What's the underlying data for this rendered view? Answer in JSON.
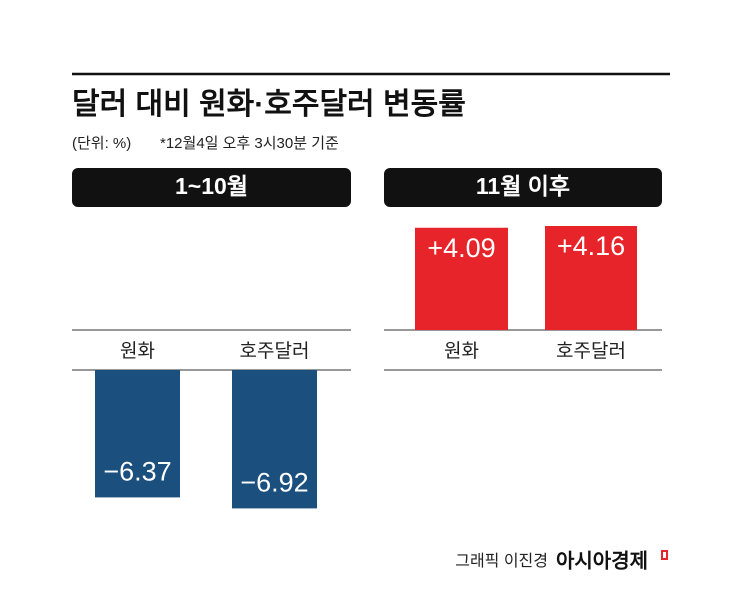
{
  "title": "달러 대비 원화·호주달러 변동률",
  "unit": "(단위: %)",
  "note": "*12월4일 오후 3시30분 기준",
  "credit": "그래픽 이진경",
  "source": "아시아경제",
  "chart_data": [
    {
      "type": "bar",
      "title": "1~10월",
      "categories": [
        "원화",
        "호주달러"
      ],
      "values": [
        -6.37,
        -6.92
      ],
      "value_labels": [
        "−6.37",
        "−6.92"
      ],
      "color": "#1b4f7e"
    },
    {
      "type": "bar",
      "title": "11월 이후",
      "categories": [
        "원화",
        "호주달러"
      ],
      "values": [
        4.09,
        4.16
      ],
      "value_labels": [
        "+4.09",
        "+4.16"
      ],
      "color": "#e8242b"
    }
  ]
}
